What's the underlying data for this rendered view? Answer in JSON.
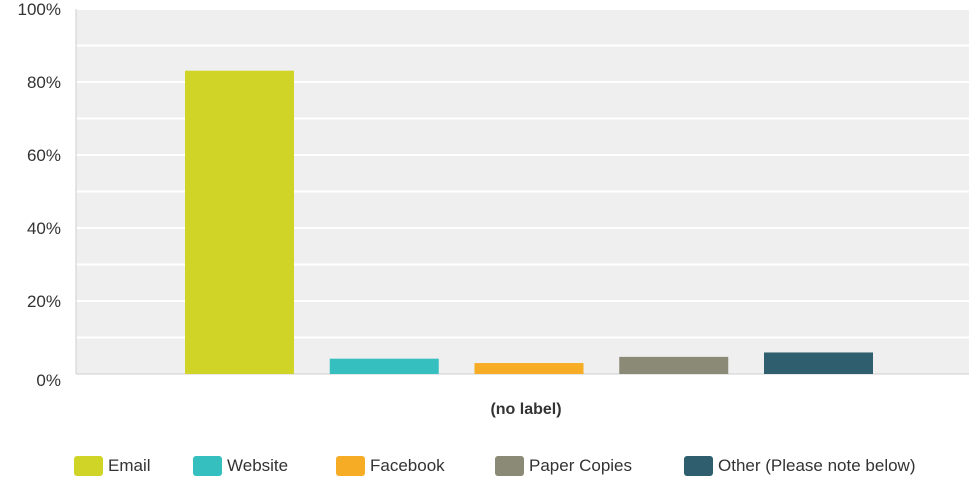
{
  "chart_data": {
    "type": "bar",
    "title": "",
    "xlabel": "(no label)",
    "ylabel": "",
    "ylim": [
      0,
      100
    ],
    "yticks": [
      "0%",
      "20%",
      "40%",
      "60%",
      "80%",
      "100%"
    ],
    "grid": true,
    "legend_position": "bottom",
    "categories": [
      "(no label)"
    ],
    "series": [
      {
        "name": "Email",
        "values": [
          83.1
        ],
        "color": "#d0d427"
      },
      {
        "name": "Website",
        "values": [
          4.2
        ],
        "color": "#35bfbf"
      },
      {
        "name": "Facebook",
        "values": [
          3.0
        ],
        "color": "#f7ac25"
      },
      {
        "name": "Paper Copies",
        "values": [
          4.7
        ],
        "color": "#8b8a76"
      },
      {
        "name": "Other (Please note below)",
        "values": [
          5.9
        ],
        "color": "#2f5f6f"
      }
    ]
  }
}
